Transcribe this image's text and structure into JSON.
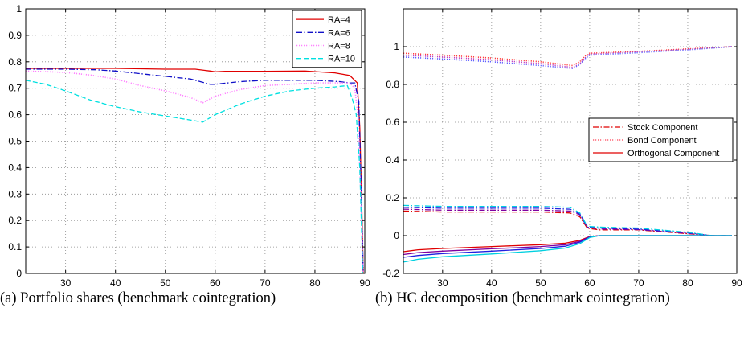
{
  "captions": {
    "a": "(a) Portfolio shares (benchmark cointegration)",
    "b": "(b) HC decomposition (benchmark cointegration)"
  },
  "chart_data": [
    {
      "type": "line",
      "title": "",
      "xlabel": "",
      "ylabel": "",
      "xlim": [
        22,
        90
      ],
      "ylim": [
        0,
        1
      ],
      "xticks": [
        30,
        40,
        50,
        60,
        70,
        80,
        90
      ],
      "yticks": [
        0,
        0.1,
        0.2,
        0.3,
        0.4,
        0.5,
        0.6,
        0.7,
        0.8,
        0.9,
        1
      ],
      "grid": true,
      "legend_position": "top-right",
      "series": [
        {
          "name": "RA=4",
          "color": "#e00000",
          "style": "solid",
          "points": [
            [
              22,
              0.775
            ],
            [
              30,
              0.775
            ],
            [
              40,
              0.775
            ],
            [
              50,
              0.772
            ],
            [
              56,
              0.772
            ],
            [
              59,
              0.765
            ],
            [
              60,
              0.762
            ],
            [
              62,
              0.764
            ],
            [
              70,
              0.764
            ],
            [
              78,
              0.765
            ],
            [
              84,
              0.758
            ],
            [
              87,
              0.748
            ],
            [
              88.5,
              0.72
            ],
            [
              89,
              0.55
            ],
            [
              89.4,
              0.25
            ],
            [
              89.7,
              0.0
            ]
          ]
        },
        {
          "name": "RA=6",
          "color": "#1010c8",
          "style": "dashdot",
          "points": [
            [
              22,
              0.772
            ],
            [
              30,
              0.772
            ],
            [
              36,
              0.77
            ],
            [
              40,
              0.765
            ],
            [
              45,
              0.755
            ],
            [
              50,
              0.745
            ],
            [
              55,
              0.735
            ],
            [
              57,
              0.725
            ],
            [
              59,
              0.715
            ],
            [
              60,
              0.715
            ],
            [
              65,
              0.725
            ],
            [
              70,
              0.73
            ],
            [
              75,
              0.73
            ],
            [
              80,
              0.73
            ],
            [
              85,
              0.725
            ],
            [
              87,
              0.72
            ],
            [
              88,
              0.72
            ],
            [
              88.8,
              0.65
            ],
            [
              89.3,
              0.3
            ],
            [
              89.7,
              0.0
            ]
          ]
        },
        {
          "name": "RA=8",
          "color": "#ff80ff",
          "style": "dotted",
          "points": [
            [
              22,
              0.765
            ],
            [
              30,
              0.76
            ],
            [
              35,
              0.75
            ],
            [
              40,
              0.735
            ],
            [
              45,
              0.71
            ],
            [
              50,
              0.69
            ],
            [
              55,
              0.665
            ],
            [
              57.5,
              0.645
            ],
            [
              60,
              0.67
            ],
            [
              65,
              0.695
            ],
            [
              70,
              0.71
            ],
            [
              75,
              0.715
            ],
            [
              80,
              0.72
            ],
            [
              84,
              0.72
            ],
            [
              87,
              0.72
            ],
            [
              88,
              0.7
            ],
            [
              88.6,
              0.6
            ],
            [
              89.2,
              0.3
            ],
            [
              89.7,
              0.0
            ]
          ]
        },
        {
          "name": "RA=10",
          "color": "#00e0e0",
          "style": "dashed",
          "points": [
            [
              22,
              0.73
            ],
            [
              26,
              0.715
            ],
            [
              30,
              0.69
            ],
            [
              35,
              0.655
            ],
            [
              40,
              0.63
            ],
            [
              45,
              0.61
            ],
            [
              50,
              0.595
            ],
            [
              55,
              0.58
            ],
            [
              57.5,
              0.572
            ],
            [
              60,
              0.6
            ],
            [
              65,
              0.64
            ],
            [
              70,
              0.67
            ],
            [
              75,
              0.69
            ],
            [
              80,
              0.7
            ],
            [
              84,
              0.705
            ],
            [
              86.5,
              0.71
            ],
            [
              87.5,
              0.66
            ],
            [
              88.3,
              0.6
            ],
            [
              89,
              0.4
            ],
            [
              89.6,
              0.0
            ]
          ]
        }
      ]
    },
    {
      "type": "line",
      "title": "",
      "xlabel": "",
      "ylabel": "",
      "xlim": [
        22,
        90
      ],
      "ylim": [
        -0.2,
        1.2
      ],
      "xticks": [
        30,
        40,
        50,
        60,
        70,
        80,
        90
      ],
      "yticks": [
        -0.2,
        0,
        0.2,
        0.4,
        0.6,
        0.8,
        1
      ],
      "grid": true,
      "legend_position": "right",
      "legend": [
        {
          "name": "Stock Component",
          "color": "#e00000",
          "style": "dashdot"
        },
        {
          "name": "Bond Component",
          "color": "#ff6070",
          "style": "dotted"
        },
        {
          "name": "Orthogonal Component",
          "color": "#e00000",
          "style": "solid"
        }
      ],
      "series": [
        {
          "component": "bond",
          "color": "#ff4040",
          "style": "dotted",
          "points": [
            [
              22,
              0.965
            ],
            [
              30,
              0.955
            ],
            [
              40,
              0.94
            ],
            [
              50,
              0.92
            ],
            [
              55,
              0.905
            ],
            [
              56.5,
              0.9
            ],
            [
              58,
              0.92
            ],
            [
              59,
              0.95
            ],
            [
              60,
              0.965
            ],
            [
              70,
              0.975
            ],
            [
              80,
              0.988
            ],
            [
              89,
              1.0
            ]
          ]
        },
        {
          "component": "bond",
          "color": "#c040c0",
          "style": "dotted",
          "points": [
            [
              22,
              0.955
            ],
            [
              30,
              0.945
            ],
            [
              40,
              0.93
            ],
            [
              50,
              0.91
            ],
            [
              55,
              0.895
            ],
            [
              56.5,
              0.89
            ],
            [
              58,
              0.91
            ],
            [
              59,
              0.94
            ],
            [
              60,
              0.96
            ],
            [
              70,
              0.972
            ],
            [
              80,
              0.985
            ],
            [
              89,
              1.0
            ]
          ]
        },
        {
          "component": "bond",
          "color": "#6060ff",
          "style": "dotted",
          "points": [
            [
              22,
              0.945
            ],
            [
              30,
              0.935
            ],
            [
              40,
              0.92
            ],
            [
              50,
              0.9
            ],
            [
              55,
              0.888
            ],
            [
              56.5,
              0.885
            ],
            [
              58,
              0.905
            ],
            [
              59,
              0.935
            ],
            [
              60,
              0.955
            ],
            [
              70,
              0.968
            ],
            [
              80,
              0.983
            ],
            [
              89,
              1.0
            ]
          ]
        },
        {
          "component": "stock",
          "color": "#e00000",
          "style": "dashdot",
          "points": [
            [
              22,
              0.13
            ],
            [
              30,
              0.125
            ],
            [
              40,
              0.125
            ],
            [
              50,
              0.125
            ],
            [
              56,
              0.12
            ],
            [
              58,
              0.1
            ],
            [
              59.5,
              0.04
            ],
            [
              62,
              0.03
            ],
            [
              70,
              0.03
            ],
            [
              80,
              0.01
            ],
            [
              85,
              0.0
            ],
            [
              89,
              0.0
            ]
          ]
        },
        {
          "component": "stock",
          "color": "#8000a0",
          "style": "dashdot",
          "points": [
            [
              22,
              0.14
            ],
            [
              30,
              0.135
            ],
            [
              40,
              0.135
            ],
            [
              50,
              0.135
            ],
            [
              56,
              0.13
            ],
            [
              58,
              0.11
            ],
            [
              59.5,
              0.045
            ],
            [
              62,
              0.035
            ],
            [
              70,
              0.032
            ],
            [
              80,
              0.012
            ],
            [
              85,
              0.0
            ],
            [
              89,
              0.0
            ]
          ]
        },
        {
          "component": "stock",
          "color": "#2020e0",
          "style": "dashdot",
          "points": [
            [
              22,
              0.15
            ],
            [
              30,
              0.145
            ],
            [
              40,
              0.145
            ],
            [
              50,
              0.145
            ],
            [
              56,
              0.14
            ],
            [
              58,
              0.115
            ],
            [
              59.5,
              0.045
            ],
            [
              62,
              0.04
            ],
            [
              70,
              0.035
            ],
            [
              80,
              0.015
            ],
            [
              85,
              0.0
            ],
            [
              89,
              0.0
            ]
          ]
        },
        {
          "component": "stock",
          "color": "#00d0e0",
          "style": "dashdot",
          "points": [
            [
              22,
              0.16
            ],
            [
              30,
              0.155
            ],
            [
              40,
              0.155
            ],
            [
              50,
              0.155
            ],
            [
              56,
              0.15
            ],
            [
              58,
              0.12
            ],
            [
              59.5,
              0.05
            ],
            [
              62,
              0.045
            ],
            [
              70,
              0.04
            ],
            [
              80,
              0.018
            ],
            [
              85,
              0.0
            ],
            [
              89,
              0.0
            ]
          ]
        },
        {
          "component": "orthogonal",
          "color": "#e00000",
          "style": "solid",
          "points": [
            [
              22,
              -0.085
            ],
            [
              25,
              -0.075
            ],
            [
              30,
              -0.068
            ],
            [
              40,
              -0.058
            ],
            [
              50,
              -0.048
            ],
            [
              55,
              -0.04
            ],
            [
              58,
              -0.025
            ],
            [
              60,
              -0.005
            ],
            [
              62,
              0.0
            ],
            [
              89,
              0.0
            ]
          ]
        },
        {
          "component": "orthogonal",
          "color": "#8000a0",
          "style": "solid",
          "points": [
            [
              22,
              -0.1
            ],
            [
              25,
              -0.09
            ],
            [
              30,
              -0.082
            ],
            [
              40,
              -0.07
            ],
            [
              50,
              -0.058
            ],
            [
              55,
              -0.048
            ],
            [
              58,
              -0.03
            ],
            [
              60,
              -0.006
            ],
            [
              62,
              0.0
            ],
            [
              89,
              0.0
            ]
          ]
        },
        {
          "component": "orthogonal",
          "color": "#2020e0",
          "style": "solid",
          "points": [
            [
              22,
              -0.115
            ],
            [
              25,
              -0.105
            ],
            [
              30,
              -0.095
            ],
            [
              40,
              -0.082
            ],
            [
              50,
              -0.068
            ],
            [
              55,
              -0.056
            ],
            [
              58,
              -0.035
            ],
            [
              60,
              -0.008
            ],
            [
              62,
              0.0
            ],
            [
              89,
              0.0
            ]
          ]
        },
        {
          "component": "orthogonal",
          "color": "#00d0e0",
          "style": "solid",
          "points": [
            [
              22,
              -0.14
            ],
            [
              25,
              -0.125
            ],
            [
              30,
              -0.112
            ],
            [
              40,
              -0.097
            ],
            [
              50,
              -0.08
            ],
            [
              55,
              -0.066
            ],
            [
              58,
              -0.042
            ],
            [
              60,
              -0.01
            ],
            [
              62,
              0.0
            ],
            [
              89,
              0.0
            ]
          ]
        }
      ]
    }
  ]
}
